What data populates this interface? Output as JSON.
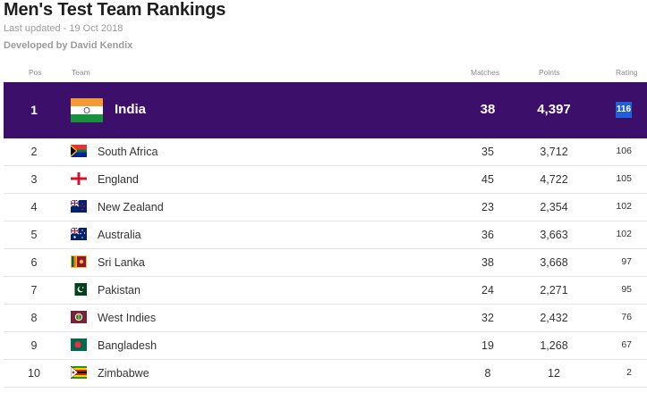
{
  "header": {
    "title": "Men's Test Team Rankings",
    "last_updated": "Last updated - 19 Oct 2018",
    "developer": "Developed by David Kendix"
  },
  "columns": {
    "pos": "Pos",
    "team": "Team",
    "matches": "Matches",
    "points": "Points",
    "rating": "Rating"
  },
  "colors": {
    "top_row_bg": "#3c0f6a",
    "rating_badge": "#1f5fd9"
  },
  "rows": [
    {
      "pos": "1",
      "team": "India",
      "flag": "india-flag-icon",
      "matches": "38",
      "points": "4,397",
      "rating": "116"
    },
    {
      "pos": "2",
      "team": "South Africa",
      "flag": "south-africa-flag-icon",
      "matches": "35",
      "points": "3,712",
      "rating": "106"
    },
    {
      "pos": "3",
      "team": "England",
      "flag": "england-flag-icon",
      "matches": "45",
      "points": "4,722",
      "rating": "105"
    },
    {
      "pos": "4",
      "team": "New Zealand",
      "flag": "new-zealand-flag-icon",
      "matches": "23",
      "points": "2,354",
      "rating": "102"
    },
    {
      "pos": "5",
      "team": "Australia",
      "flag": "australia-flag-icon",
      "matches": "36",
      "points": "3,663",
      "rating": "102"
    },
    {
      "pos": "6",
      "team": "Sri Lanka",
      "flag": "sri-lanka-flag-icon",
      "matches": "38",
      "points": "3,668",
      "rating": "97"
    },
    {
      "pos": "7",
      "team": "Pakistan",
      "flag": "pakistan-flag-icon",
      "matches": "24",
      "points": "2,271",
      "rating": "95"
    },
    {
      "pos": "8",
      "team": "West Indies",
      "flag": "west-indies-flag-icon",
      "matches": "32",
      "points": "2,432",
      "rating": "76"
    },
    {
      "pos": "9",
      "team": "Bangladesh",
      "flag": "bangladesh-flag-icon",
      "matches": "19",
      "points": "1,268",
      "rating": "67"
    },
    {
      "pos": "10",
      "team": "Zimbabwe",
      "flag": "zimbabwe-flag-icon",
      "matches": "8",
      "points": "12",
      "rating": "2"
    }
  ]
}
